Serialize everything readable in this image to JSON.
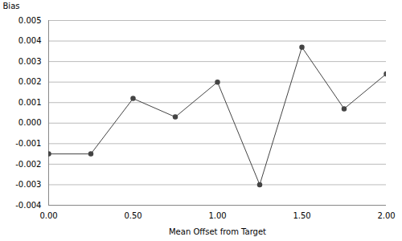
{
  "chart_data": {
    "type": "line",
    "x": [
      0.0,
      0.25,
      0.5,
      0.75,
      1.0,
      1.25,
      1.5,
      1.75,
      2.0
    ],
    "values": [
      -0.0015,
      -0.0015,
      0.0012,
      0.0003,
      0.002,
      -0.003,
      0.0037,
      0.0007,
      0.0024
    ],
    "x_label": "Mean Offset from Target",
    "y_label": "Bias",
    "xlim": [
      0.0,
      2.0
    ],
    "ylim": [
      -0.004,
      0.005
    ],
    "xticks": [
      {
        "value": 0.0,
        "label": "0.00"
      },
      {
        "value": 0.5,
        "label": "0.50"
      },
      {
        "value": 1.0,
        "label": "1.00"
      },
      {
        "value": 1.5,
        "label": "1.50"
      },
      {
        "value": 2.0,
        "label": "2.00"
      }
    ],
    "yticks": [
      -0.004,
      -0.003,
      -0.002,
      -0.001,
      {
        "value": 0,
        "label": "0.000"
      },
      0.001,
      0.002,
      0.003,
      0.004,
      0.005
    ],
    "color": "#444444",
    "marker": "o",
    "grid": "y"
  }
}
